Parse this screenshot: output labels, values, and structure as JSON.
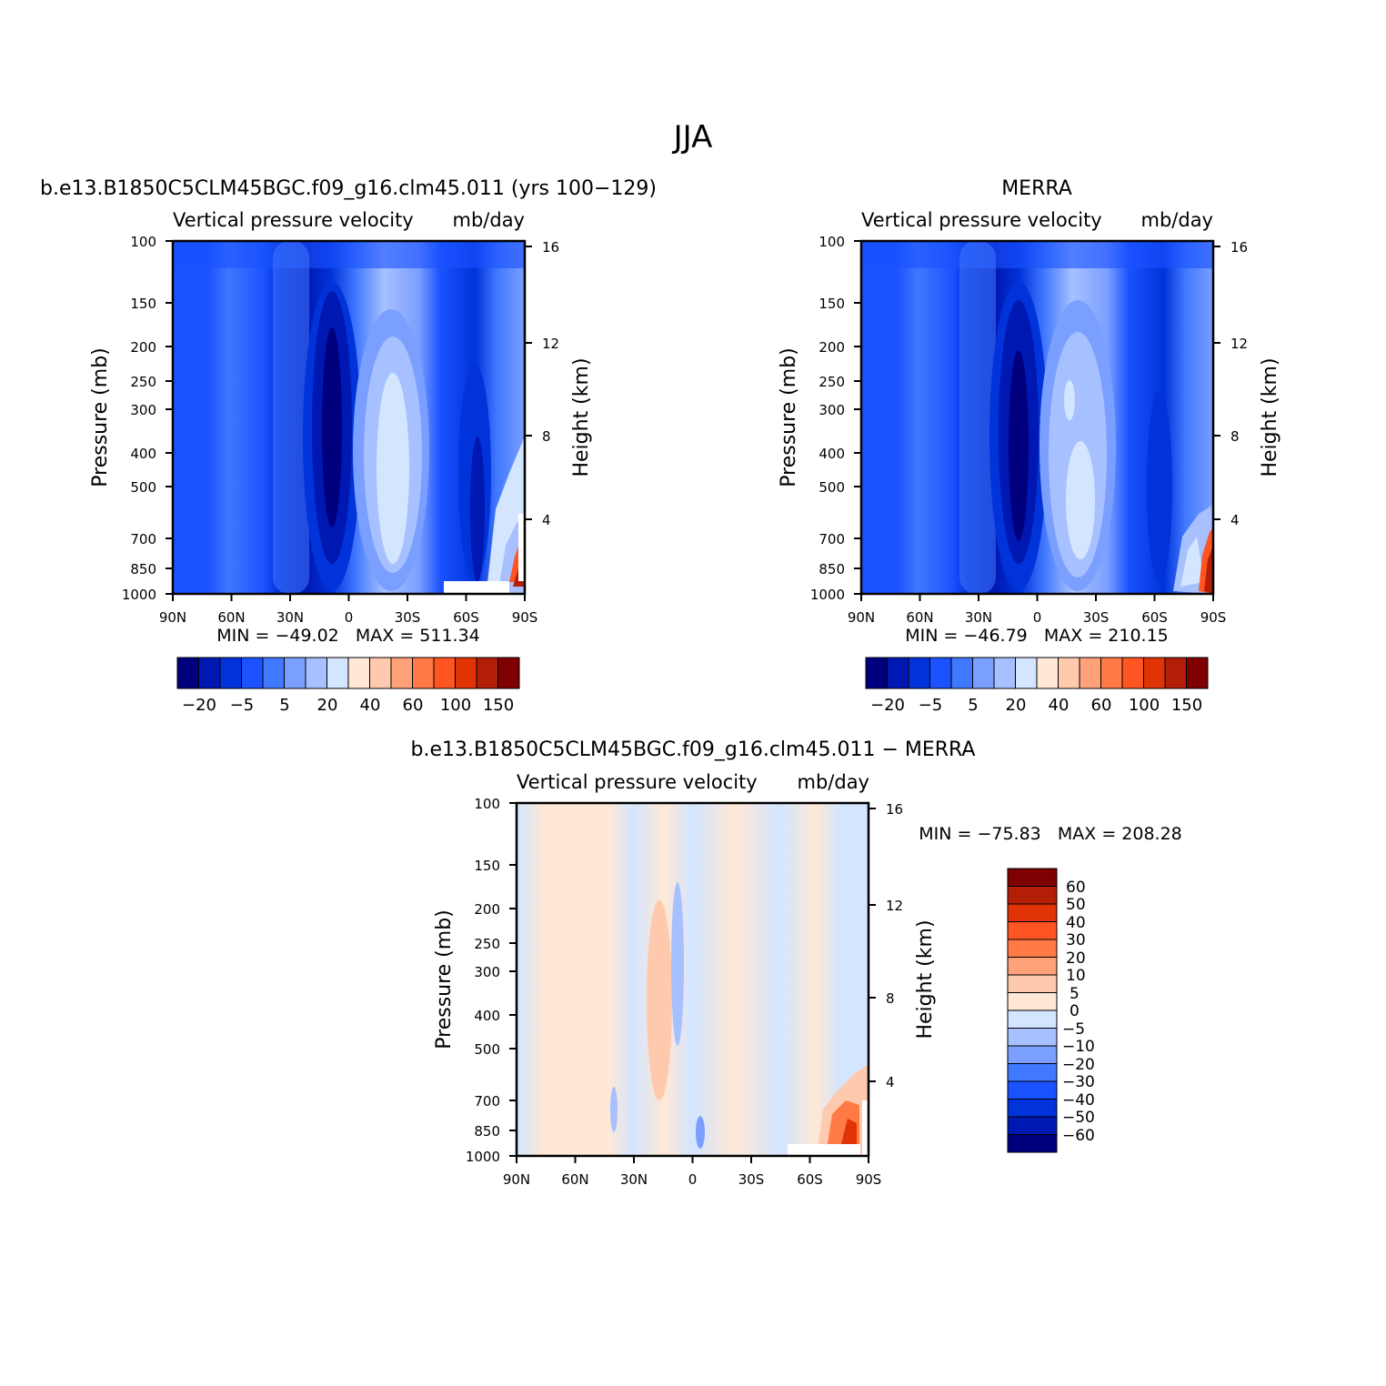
{
  "title": "JJA",
  "panels": [
    {
      "id": "model",
      "case_title": "b.e13.B1850C5CLM45BGC.f09_g16.clm45.011 (yrs 100−129)",
      "var_label": "Vertical pressure velocity",
      "units": "mb/day",
      "ylabel_left": "Pressure (mb)",
      "ylabel_right": "Height (km)",
      "stats": "MIN = −49.02   MAX = 511.34"
    },
    {
      "id": "obs",
      "case_title": "MERRA",
      "var_label": "Vertical pressure velocity",
      "units": "mb/day",
      "ylabel_left": "Pressure (mb)",
      "ylabel_right": "Height (km)",
      "stats": "MIN = −46.79   MAX = 210.15"
    },
    {
      "id": "diff",
      "case_title": "b.e13.B1850C5CLM45BGC.f09_g16.clm45.011 − MERRA",
      "var_label": "Vertical pressure velocity",
      "units": "mb/day",
      "ylabel_left": "Pressure (mb)",
      "ylabel_right": "Height (km)",
      "stats": "MIN = −75.83   MAX = 208.28"
    }
  ],
  "chart_data": {
    "type": "heatmap",
    "x_ticks": [
      "90N",
      "60N",
      "30N",
      "0",
      "30S",
      "60S",
      "90S"
    ],
    "y_ticks_pressure": [
      "100",
      "150",
      "200",
      "250",
      "300",
      "400",
      "500",
      "700",
      "850",
      "1000"
    ],
    "y_ticks_height": [
      "16",
      "12",
      "8",
      "4"
    ],
    "ylim_pressure_mb": [
      1000,
      100
    ],
    "y_scale": "log",
    "grid": false,
    "colorbar_main": {
      "orientation": "horizontal",
      "placement": "bottom",
      "colors": [
        "#00007f",
        "#0018b2",
        "#0033d9",
        "#1a52ff",
        "#4078ff",
        "#7a9fff",
        "#a7c0ff",
        "#d3e5ff",
        "#ffe8d6",
        "#ffc9ad",
        "#ffa27a",
        "#ff7a45",
        "#ff5522",
        "#e03306",
        "#b31e07",
        "#7f0000"
      ],
      "labels": [
        "−20",
        "−5",
        "5",
        "20",
        "40",
        "60",
        "100",
        "150"
      ]
    },
    "colorbar_diff": {
      "orientation": "vertical",
      "placement": "right",
      "colors": [
        "#7f0000",
        "#b31e07",
        "#e03306",
        "#ff5522",
        "#ff7a45",
        "#ffa27a",
        "#ffc9ad",
        "#ffe8d6",
        "#d3e5ff",
        "#a7c0ff",
        "#7a9fff",
        "#4078ff",
        "#1a52ff",
        "#0033d9",
        "#0018b2",
        "#00007f"
      ],
      "labels": [
        "60",
        "50",
        "40",
        "30",
        "20",
        "10",
        "5",
        "0",
        "−5",
        "−10",
        "−20",
        "−30",
        "−40",
        "−50",
        "−60"
      ]
    }
  }
}
